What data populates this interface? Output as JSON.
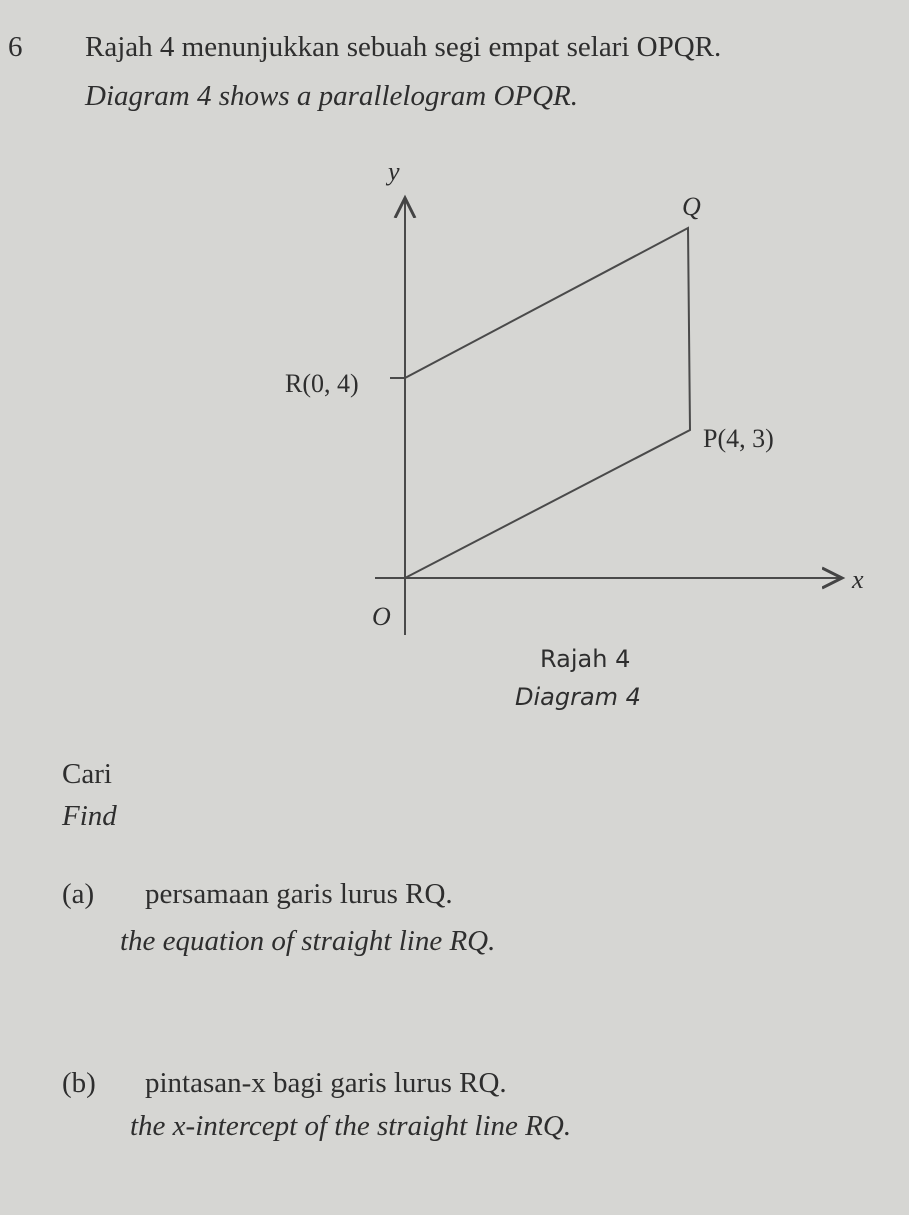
{
  "question": {
    "number": "6",
    "intro_ms": "Rajah 4 menunjukkan sebuah segi empat selari OPQR.",
    "intro_en": "Diagram 4 shows a parallelogram OPQR."
  },
  "diagram": {
    "y_axis": "y",
    "x_axis": "x",
    "origin": "O",
    "point_q": "Q",
    "point_r": "R(0, 4)",
    "point_p": "P(4, 3)",
    "caption_ms": "Rajah 4",
    "caption_en": "Diagram 4"
  },
  "instruction": {
    "ms": "Cari",
    "en": "Find"
  },
  "parts": [
    {
      "label": "(a)",
      "ms": "persamaan garis lurus RQ.",
      "en": "the equation of straight line RQ."
    },
    {
      "label": "(b)",
      "ms": "pintasan-x bagi garis lurus RQ.",
      "en": "the x-intercept of the straight line RQ."
    }
  ]
}
